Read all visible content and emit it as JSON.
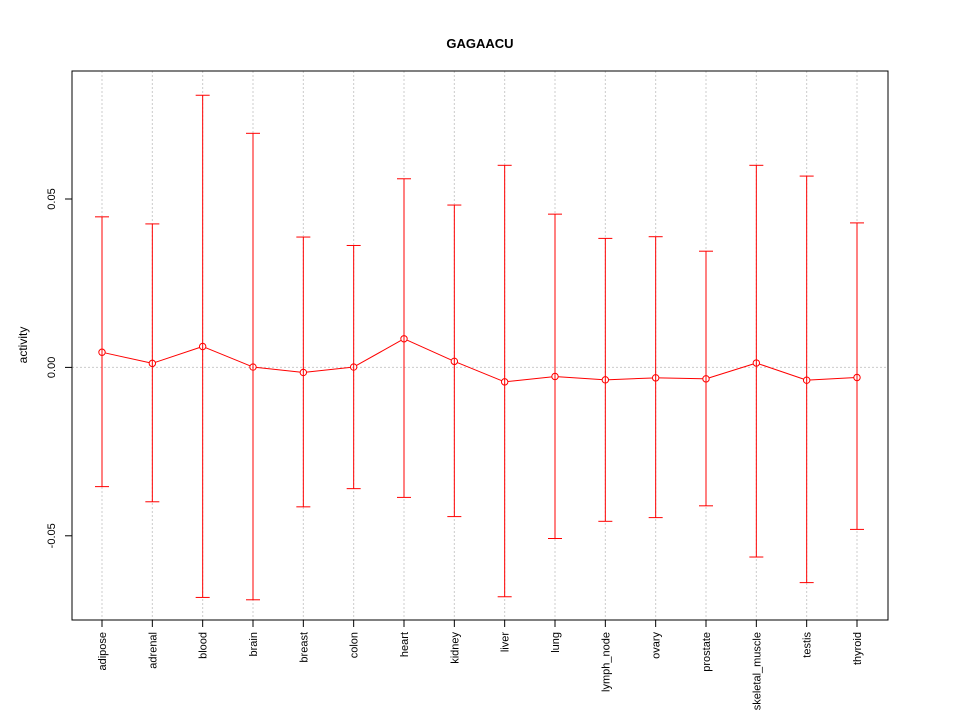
{
  "chart_data": {
    "type": "line",
    "title": "GAGAACU",
    "xlabel": "",
    "ylabel": "activity",
    "ylim": [
      -0.075,
      0.088
    ],
    "yticks": [
      -0.05,
      0.0,
      0.05
    ],
    "ytick_labels": [
      "-0.05",
      "0.00",
      "0.05"
    ],
    "grid": true,
    "color": "#ff0000",
    "grid_color": "#cccccc",
    "categories": [
      "adipose",
      "adrenal",
      "blood",
      "brain",
      "breast",
      "colon",
      "heart",
      "kidney",
      "liver",
      "lung",
      "lymph_node",
      "ovary",
      "prostate",
      "skeletal_muscle",
      "testis",
      "thyroid"
    ],
    "series": [
      {
        "values": [
          0.0045,
          0.0012,
          0.0062,
          0.0001,
          -0.0015,
          0.0001,
          0.0085,
          0.0018,
          -0.0043,
          -0.0027,
          -0.0037,
          -0.0031,
          -0.0034,
          0.0013,
          -0.0038,
          -0.003
        ],
        "upper": [
          0.0447,
          0.0426,
          0.0808,
          0.0695,
          0.0387,
          0.0362,
          0.056,
          0.0482,
          0.06,
          0.0455,
          0.0383,
          0.0388,
          0.0345,
          0.06,
          0.0568,
          0.0429
        ],
        "lower": [
          -0.0354,
          -0.0399,
          -0.0683,
          -0.069,
          -0.0414,
          -0.036,
          -0.0386,
          -0.0443,
          -0.0681,
          -0.0508,
          -0.0457,
          -0.0446,
          -0.0411,
          -0.0563,
          -0.0639,
          -0.0481
        ]
      }
    ]
  }
}
